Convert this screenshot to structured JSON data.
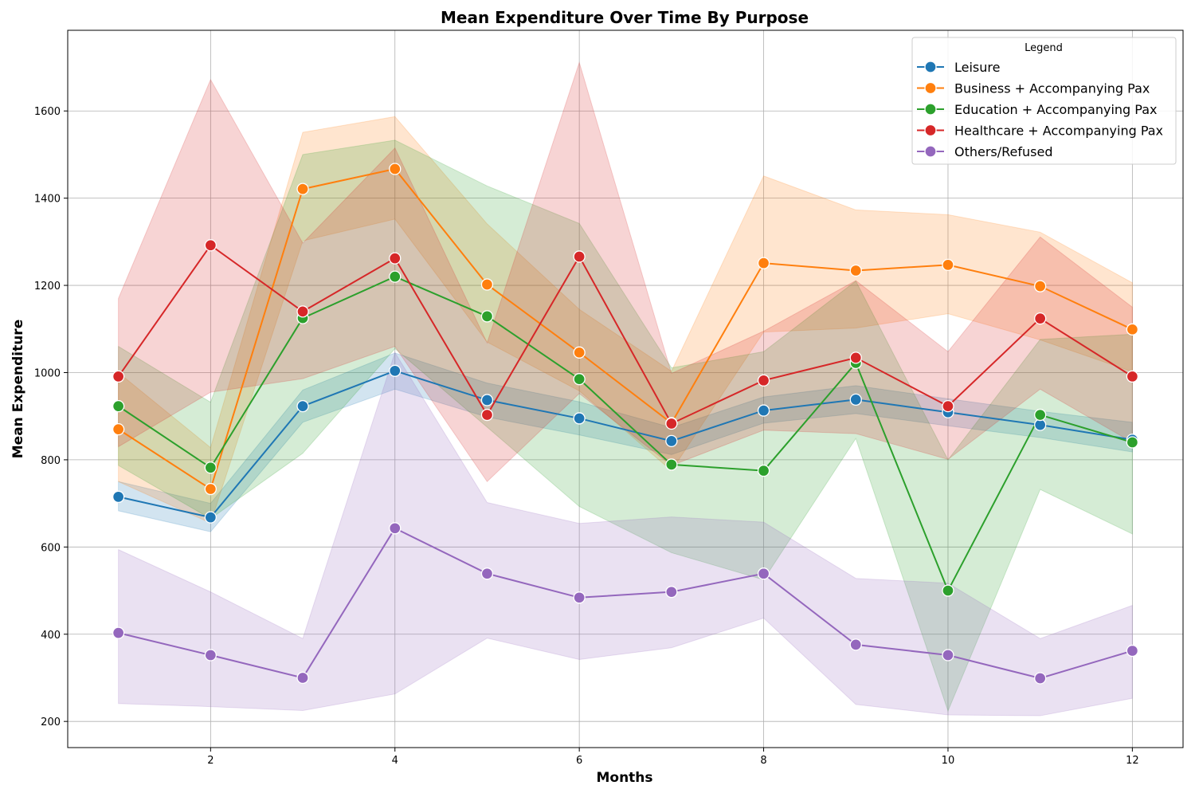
{
  "chart_data": {
    "type": "line",
    "title": "Mean Expenditure Over Time By Purpose",
    "xlabel": "Months",
    "ylabel": "Mean Expenditure",
    "xlim": [
      0.45,
      12.55
    ],
    "ylim": [
      140,
      1785
    ],
    "x_ticks": [
      2,
      4,
      6,
      8,
      10,
      12
    ],
    "y_ticks": [
      200,
      400,
      600,
      800,
      1000,
      1200,
      1400,
      1600
    ],
    "grid": true,
    "legend": {
      "title": "Legend",
      "position": "top-right"
    },
    "x": [
      1,
      2,
      3,
      4,
      5,
      6,
      7,
      8,
      9,
      10,
      11,
      12
    ],
    "series": [
      {
        "name": "Leisure",
        "color": "#1f77b4",
        "values": [
          715,
          668,
          923,
          1004,
          937,
          895,
          843,
          913,
          938,
          909,
          880,
          846
        ],
        "ci_lower": [
          683,
          635,
          886,
          962,
          898,
          857,
          812,
          884,
          906,
          878,
          851,
          818
        ],
        "ci_upper": [
          750,
          700,
          960,
          1045,
          976,
          933,
          874,
          944,
          970,
          940,
          911,
          886
        ]
      },
      {
        "name": "Business + Accompanying Pax",
        "color": "#ff7f0e",
        "values": [
          870,
          733,
          1421,
          1467,
          1202,
          1046,
          884,
          1251,
          1234,
          1247,
          1198,
          1099
        ],
        "ci_lower": [
          750,
          655,
          1302,
          1352,
          1070,
          958,
          775,
          1093,
          1102,
          1135,
          1075,
          1002
        ],
        "ci_upper": [
          1000,
          828,
          1551,
          1587,
          1341,
          1145,
          1003,
          1451,
          1373,
          1362,
          1322,
          1206
        ]
      },
      {
        "name": "Education + Accompanying Pax",
        "color": "#2ca02c",
        "values": [
          923,
          782,
          1125,
          1220,
          1129,
          985,
          789,
          775,
          1022,
          500,
          903,
          840
        ],
        "ci_lower": [
          787,
          665,
          815,
          1055,
          875,
          693,
          587,
          525,
          849,
          224,
          732,
          630
        ],
        "ci_upper": [
          1060,
          932,
          1500,
          1533,
          1428,
          1342,
          1011,
          1048,
          1210,
          800,
          1076,
          1088
        ]
      },
      {
        "name": "Healthcare + Accompanying Pax",
        "color": "#d62728",
        "values": [
          991,
          1292,
          1140,
          1262,
          903,
          1266,
          883,
          982,
          1034,
          923,
          1124,
          991
        ],
        "ci_lower": [
          830,
          955,
          986,
          1060,
          750,
          952,
          787,
          868,
          860,
          801,
          962,
          840
        ],
        "ci_upper": [
          1170,
          1672,
          1297,
          1515,
          1068,
          1711,
          998,
          1095,
          1211,
          1048,
          1311,
          1150
        ]
      },
      {
        "name": "Others/Refused",
        "color": "#9467bd",
        "values": [
          403,
          352,
          300,
          643,
          539,
          484,
          497,
          539,
          376,
          352,
          299,
          362
        ],
        "ci_lower": [
          241,
          234,
          225,
          263,
          391,
          342,
          369,
          437,
          239,
          215,
          213,
          253
        ],
        "ci_upper": [
          594,
          497,
          390,
          1046,
          702,
          654,
          669,
          657,
          528,
          517,
          390,
          466
        ]
      }
    ]
  }
}
